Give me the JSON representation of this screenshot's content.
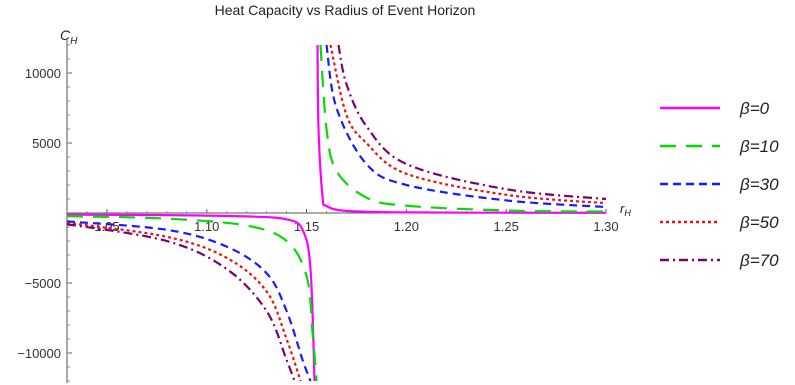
{
  "chart_data": {
    "type": "line",
    "title": "Heat Capacity vs Radius of Event Horizon",
    "xlabel_main": "r",
    "xlabel_sub": "H",
    "ylabel_main": "C",
    "ylabel_sub": "H",
    "xlim": [
      1.03,
      1.3
    ],
    "ylim": [
      -12000,
      12000
    ],
    "x_axis_crossing_y": 0,
    "y_axis_at_x": 1.03,
    "x_ticks": [
      "1.05",
      "1.10",
      "1.15",
      "1.20",
      "1.25",
      "1.30"
    ],
    "x_tick_values": [
      1.05,
      1.1,
      1.15,
      1.2,
      1.25,
      1.3
    ],
    "y_ticks": [
      "10000",
      "5000",
      "−5000",
      "−10000"
    ],
    "y_tick_values": [
      10000,
      5000,
      -5000,
      -10000
    ],
    "grid": false,
    "legend_position": "right",
    "series": [
      {
        "name": "β=0",
        "color": "#ff00ff",
        "dash": "solid",
        "x": [
          1.03,
          1.08,
          1.12,
          1.14,
          1.148,
          1.152,
          1.154,
          1.1555,
          1.156,
          1.158,
          1.16,
          1.17,
          1.2,
          1.25,
          1.3
        ],
        "y": [
          -120,
          -150,
          -240,
          -450,
          -1200,
          -4000,
          -12000,
          12000,
          6000,
          1200,
          500,
          150,
          40,
          20,
          15
        ]
      },
      {
        "name": "β=10",
        "color": "#00dd00",
        "dash": "long-dash",
        "x": [
          1.03,
          1.08,
          1.12,
          1.14,
          1.15,
          1.153,
          1.155,
          1.157,
          1.16,
          1.165,
          1.18,
          1.2,
          1.25,
          1.3
        ],
        "y": [
          -230,
          -400,
          -900,
          -2000,
          -4500,
          -8500,
          -12000,
          12000,
          6000,
          3000,
          1100,
          520,
          180,
          100
        ]
      },
      {
        "name": "β=30",
        "color": "#1a1aff",
        "dash": "dashed",
        "x": [
          1.03,
          1.08,
          1.11,
          1.13,
          1.14,
          1.148,
          1.152,
          1.16,
          1.165,
          1.18,
          1.2,
          1.25,
          1.3
        ],
        "y": [
          -600,
          -1200,
          -2400,
          -4300,
          -7000,
          -10500,
          -12000,
          12000,
          7500,
          3500,
          2000,
          900,
          430
        ]
      },
      {
        "name": "β=50",
        "color": "#ee1111",
        "dash": "dotted",
        "x": [
          1.03,
          1.08,
          1.11,
          1.13,
          1.14,
          1.147,
          1.162,
          1.17,
          1.18,
          1.2,
          1.25,
          1.3
        ],
        "y": [
          -700,
          -1700,
          -3200,
          -5600,
          -9000,
          -12000,
          12000,
          7000,
          5000,
          2800,
          1300,
          700
        ]
      },
      {
        "name": "β=70",
        "color": "#7a0077",
        "dash": "dash-dot",
        "x": [
          1.03,
          1.08,
          1.11,
          1.13,
          1.14,
          1.144,
          1.166,
          1.17,
          1.18,
          1.2,
          1.25,
          1.3
        ],
        "y": [
          -800,
          -2000,
          -4000,
          -7000,
          -10500,
          -12000,
          12000,
          9200,
          6200,
          3500,
          1700,
          1000
        ]
      }
    ]
  }
}
